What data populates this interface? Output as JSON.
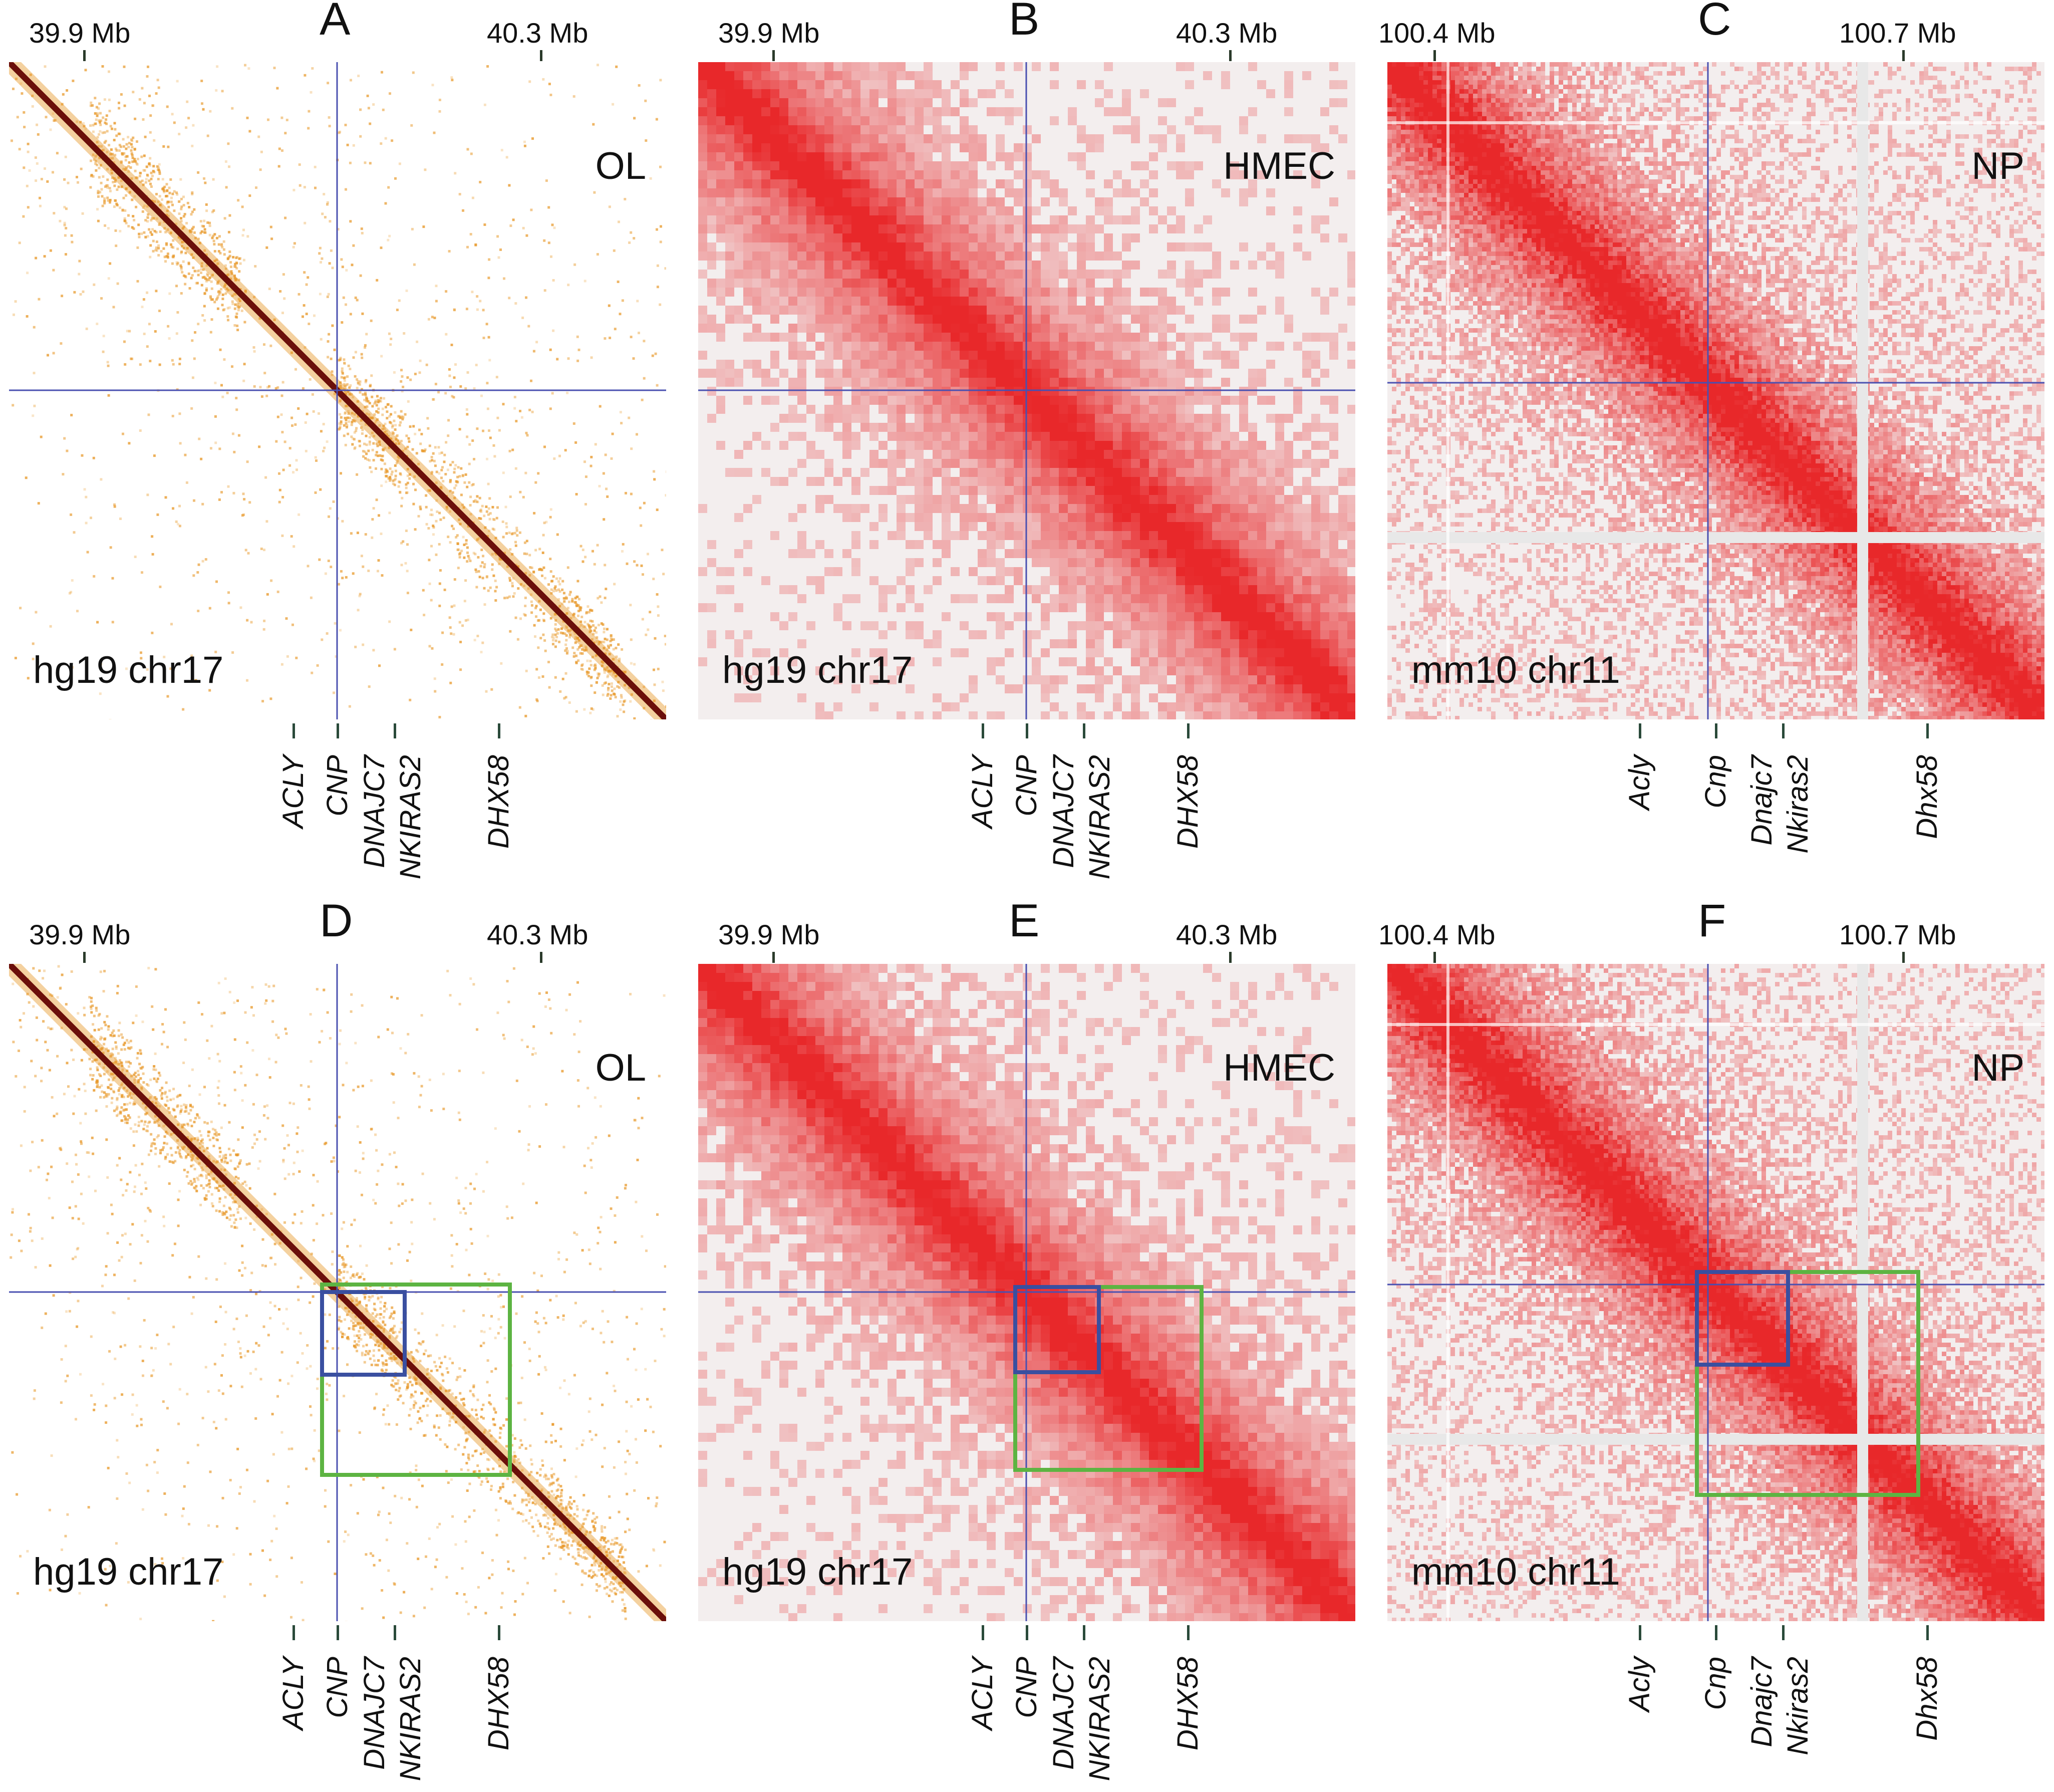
{
  "colors": {
    "ol_diag": "#6b0f0a",
    "ol_dot": "#e89a2c",
    "hic_red": "#e8282a",
    "bg_grey": "#e8e8e8",
    "crosshair": "#4a50b0",
    "box_blue": "#3a4fa0",
    "box_green": "#5db442",
    "gene_tick": "#2a4a3a"
  },
  "panels": [
    {
      "id": "A",
      "letter": "A",
      "cell": "OL",
      "assembly": "hg19 chr17",
      "left_coord": "39.9 Mb",
      "right_coord": "40.3 Mb",
      "style": "ol",
      "genes": [
        "ACLY",
        "CNP",
        "DNAJC7",
        "NKIRAS2",
        "DHX58"
      ],
      "boxes": false
    },
    {
      "id": "B",
      "letter": "B",
      "cell": "HMEC",
      "assembly": "hg19 chr17",
      "left_coord": "39.9 Mb",
      "right_coord": "40.3 Mb",
      "style": "hmec",
      "genes": [
        "ACLY",
        "CNP",
        "DNAJC7",
        "NKIRAS2",
        "DHX58"
      ],
      "boxes": false
    },
    {
      "id": "C",
      "letter": "C",
      "cell": "NP",
      "assembly": "mm10 chr11",
      "left_coord": "100.4 Mb",
      "right_coord": "100.7 Mb",
      "style": "np",
      "genes": [
        "Acly",
        "Cnp",
        "Dnajc7",
        "Nkiras2",
        "Dhx58"
      ],
      "boxes": false
    },
    {
      "id": "D",
      "letter": "D",
      "cell": "OL",
      "assembly": "hg19 chr17",
      "left_coord": "39.9 Mb",
      "right_coord": "40.3 Mb",
      "style": "ol",
      "genes": [
        "ACLY",
        "CNP",
        "DNAJC7",
        "NKIRAS2",
        "DHX58"
      ],
      "boxes": true
    },
    {
      "id": "E",
      "letter": "E",
      "cell": "HMEC",
      "assembly": "hg19 chr17",
      "left_coord": "39.9 Mb",
      "right_coord": "40.3 Mb",
      "style": "hmec",
      "genes": [
        "ACLY",
        "CNP",
        "DNAJC7",
        "NKIRAS2",
        "DHX58"
      ],
      "boxes": true
    },
    {
      "id": "F",
      "letter": "F",
      "cell": "NP",
      "assembly": "mm10 chr11",
      "left_coord": "100.4 Mb",
      "right_coord": "100.7 Mb",
      "style": "np",
      "genes": [
        "Acly",
        "Cnp",
        "Dnajc7",
        "Nkiras2",
        "Dhx58"
      ],
      "boxes": true
    }
  ]
}
